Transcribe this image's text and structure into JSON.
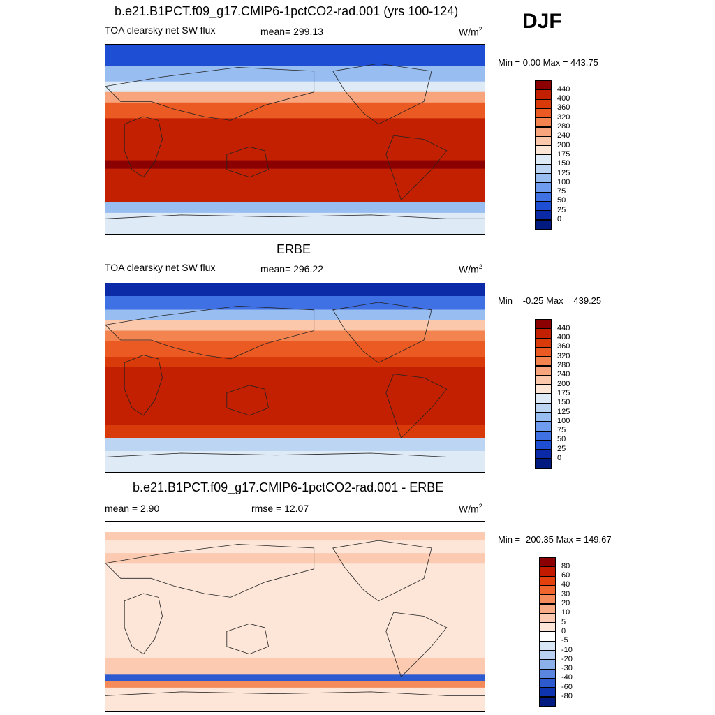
{
  "season": "DJF",
  "chart_data": [
    {
      "type": "heatmap",
      "title": "b.e21.B1PCT.f09_g17.CMIP6-1pctCO2-rad.001 (yrs 100-124)",
      "variable": "TOA clearsky net SW flux",
      "mean_text": "mean= 299.13",
      "units": "W/m",
      "units_exp": "2",
      "minmax_text": "Min =   0.00 Max = 443.75",
      "colorbar_levels": [
        "440",
        "400",
        "360",
        "320",
        "280",
        "240",
        "200",
        "175",
        "150",
        "125",
        "100",
        "75",
        "50",
        "25",
        "0"
      ],
      "colorbar_colors": [
        "#8b0000",
        "#c22000",
        "#d93a0a",
        "#ea5a22",
        "#f3834f",
        "#f8a47d",
        "#fbc8ab",
        "#fde6d6",
        "#dfeaf7",
        "#bcd5f2",
        "#98bdf0",
        "#6f9cee",
        "#3f70e4",
        "#1e4ed4",
        "#0a2aa8",
        "#001a80"
      ],
      "lat_bands": [
        {
          "lat": [
            90,
            70
          ],
          "v": 25
        },
        {
          "lat": [
            70,
            55
          ],
          "v": 100
        },
        {
          "lat": [
            55,
            45
          ],
          "v": 150
        },
        {
          "lat": [
            45,
            35
          ],
          "v": 240
        },
        {
          "lat": [
            35,
            20
          ],
          "v": 320
        },
        {
          "lat": [
            20,
            5
          ],
          "v": 400
        },
        {
          "lat": [
            5,
            -10
          ],
          "v": 420
        },
        {
          "lat": [
            -10,
            -20
          ],
          "v": 430
        },
        {
          "lat": [
            -20,
            -28
          ],
          "v": 445
        },
        {
          "lat": [
            -28,
            -45
          ],
          "v": 430
        },
        {
          "lat": [
            -45,
            -60
          ],
          "v": 400
        },
        {
          "lat": [
            -60,
            -70
          ],
          "v": 120
        },
        {
          "lat": [
            -70,
            -90
          ],
          "v": 150
        }
      ]
    },
    {
      "type": "heatmap",
      "title": "ERBE",
      "variable": "TOA clearsky net SW flux",
      "mean_text": "mean= 296.22",
      "units": "W/m",
      "units_exp": "2",
      "minmax_text": "Min =  -0.25 Max = 439.25",
      "colorbar_levels": [
        "440",
        "400",
        "360",
        "320",
        "280",
        "240",
        "200",
        "175",
        "150",
        "125",
        "100",
        "75",
        "50",
        "25",
        "0"
      ],
      "colorbar_colors": [
        "#8b0000",
        "#c22000",
        "#d93a0a",
        "#ea5a22",
        "#f3834f",
        "#f8a47d",
        "#fbc8ab",
        "#fde6d6",
        "#dfeaf7",
        "#bcd5f2",
        "#98bdf0",
        "#6f9cee",
        "#3f70e4",
        "#1e4ed4",
        "#0a2aa8",
        "#001a80"
      ],
      "lat_bands": [
        {
          "lat": [
            90,
            78
          ],
          "v": 10
        },
        {
          "lat": [
            78,
            65
          ],
          "v": 60
        },
        {
          "lat": [
            65,
            55
          ],
          "v": 110
        },
        {
          "lat": [
            55,
            45
          ],
          "v": 200
        },
        {
          "lat": [
            45,
            35
          ],
          "v": 280
        },
        {
          "lat": [
            35,
            20
          ],
          "v": 340
        },
        {
          "lat": [
            20,
            10
          ],
          "v": 380
        },
        {
          "lat": [
            10,
            -45
          ],
          "v": 420
        },
        {
          "lat": [
            -45,
            -58
          ],
          "v": 380
        },
        {
          "lat": [
            -58,
            -70
          ],
          "v": 125
        },
        {
          "lat": [
            -70,
            -90
          ],
          "v": 150
        }
      ]
    },
    {
      "type": "heatmap",
      "title": "b.e21.B1PCT.f09_g17.CMIP6-1pctCO2-rad.001 - ERBE",
      "mean_text": "mean =   2.90",
      "rmse_text": "rmse =  12.07",
      "units": "W/m",
      "units_exp": "2",
      "minmax_text": "Min = -200.35 Max = 149.67",
      "colorbar_levels": [
        "80",
        "60",
        "40",
        "30",
        "20",
        "10",
        "5",
        "0",
        "-5",
        "-10",
        "-20",
        "-30",
        "-40",
        "-60",
        "-80"
      ],
      "colorbar_colors": [
        "#8b0000",
        "#c21a00",
        "#e3400d",
        "#f0642e",
        "#f58a5a",
        "#f8ac86",
        "#fbcab0",
        "#fde6d8",
        "#ffffff",
        "#d9e6f6",
        "#b9d0f0",
        "#8cb0ea",
        "#5a86e0",
        "#2e5ad0",
        "#0f34b0",
        "#001a80"
      ],
      "lat_bands": [
        {
          "lat": [
            90,
            80
          ],
          "v": -3
        },
        {
          "lat": [
            80,
            72
          ],
          "v": 8
        },
        {
          "lat": [
            72,
            60
          ],
          "v": 3
        },
        {
          "lat": [
            60,
            50
          ],
          "v": 6
        },
        {
          "lat": [
            50,
            -40
          ],
          "v": 3
        },
        {
          "lat": [
            -40,
            -55
          ],
          "v": 8
        },
        {
          "lat": [
            -55,
            -62
          ],
          "v": -50
        },
        {
          "lat": [
            -62,
            -68
          ],
          "v": 25
        },
        {
          "lat": [
            -68,
            -90
          ],
          "v": 4
        }
      ]
    }
  ]
}
